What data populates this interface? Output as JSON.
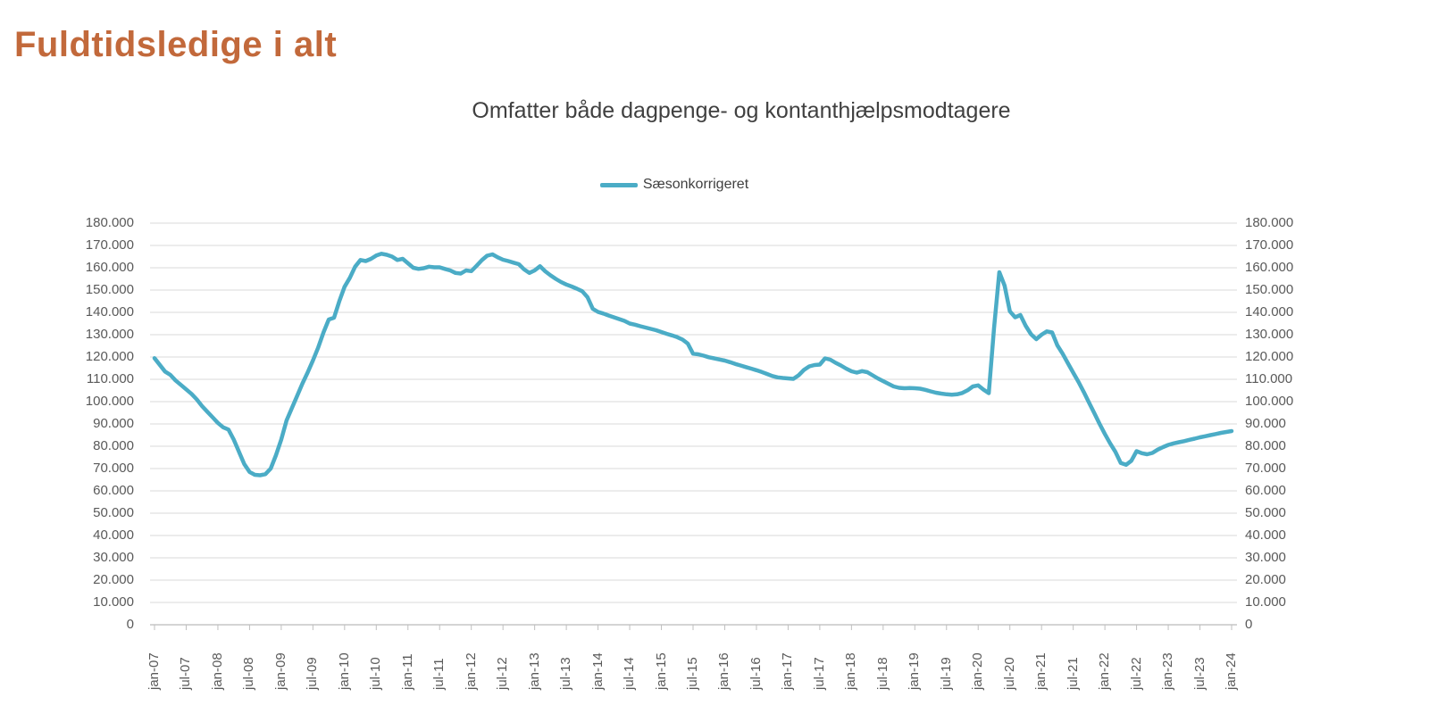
{
  "page": {
    "title": "Fuldtidsledige i alt"
  },
  "chart": {
    "subtitle": "Omfatter både dagpenge- og kontanthjælpsmodtagere",
    "legend": {
      "label": "Sæsonkorrigeret"
    }
  },
  "colors": {
    "title": "#C2693B",
    "line": "#4BACC6",
    "grid": "#D9D9D9",
    "axis_line": "#C6C6C6",
    "tick": "#BFBFBF",
    "axis_text": "#595959",
    "subtitle_text": "#404040"
  },
  "chart_data": {
    "type": "line",
    "title": "Omfatter både dagpenge- og kontanthjælpsmodtagere",
    "legend_position": "top-center",
    "grid": "horizontal",
    "series_name": "Sæsonkorrigeret",
    "x_start": "jan-07",
    "x_end": "jan-24",
    "x_interval": "monthly",
    "ylim": [
      0,
      180000
    ],
    "y_tick_step": 10000,
    "y_tick_labels": [
      "0",
      "10.000",
      "20.000",
      "30.000",
      "40.000",
      "50.000",
      "60.000",
      "70.000",
      "80.000",
      "90.000",
      "100.000",
      "110.000",
      "120.000",
      "130.000",
      "140.000",
      "150.000",
      "160.000",
      "170.000",
      "180.000"
    ],
    "x_tick_labels": [
      "jan-07",
      "jul-07",
      "jan-08",
      "jul-08",
      "jan-09",
      "jul-09",
      "jan-10",
      "jul-10",
      "jan-11",
      "jul-11",
      "jan-12",
      "jul-12",
      "jan-13",
      "jul-13",
      "jan-14",
      "jul-14",
      "jan-15",
      "jul-15",
      "jan-16",
      "jul-16",
      "jan-17",
      "jul-17",
      "jan-18",
      "jul-18",
      "jan-19",
      "jul-19",
      "jan-20",
      "jul-20",
      "jan-21",
      "jul-21",
      "jan-22",
      "jul-22",
      "jan-23",
      "jul-23",
      "jan-24"
    ],
    "values": [
      119500,
      116500,
      113500,
      112000,
      109500,
      107500,
      105500,
      103500,
      101000,
      98000,
      95500,
      93000,
      90500,
      88500,
      87500,
      83000,
      77500,
      72000,
      68500,
      67200,
      67000,
      67500,
      70000,
      76000,
      83000,
      91500,
      97000,
      102500,
      108000,
      113000,
      118500,
      124300,
      131000,
      136800,
      137600,
      145000,
      151500,
      155500,
      160500,
      163500,
      163000,
      164000,
      165500,
      166300,
      165800,
      165000,
      163500,
      164000,
      162000,
      160000,
      159500,
      159800,
      160500,
      160200,
      160200,
      159500,
      158800,
      157700,
      157400,
      158800,
      158500,
      160900,
      163400,
      165400,
      166000,
      164700,
      163600,
      163000,
      162300,
      161600,
      159300,
      157700,
      158800,
      160700,
      158400,
      156600,
      155000,
      153600,
      152500,
      151600,
      150600,
      149500,
      146800,
      141600,
      140200,
      139500,
      138600,
      137800,
      137000,
      136200,
      135000,
      134500,
      133800,
      133200,
      132600,
      132000,
      131200,
      130400,
      129700,
      128900,
      127800,
      126000,
      121500,
      121200,
      120600,
      119900,
      119400,
      118900,
      118400,
      117700,
      116900,
      116200,
      115500,
      114800,
      114100,
      113300,
      112400,
      111500,
      110900,
      110600,
      110400,
      110200,
      111800,
      114200,
      115800,
      116400,
      116600,
      119400,
      118800,
      117400,
      116200,
      114800,
      113600,
      113000,
      113700,
      113200,
      111800,
      110400,
      109200,
      108000,
      106800,
      106200,
      106000,
      106100,
      106000,
      105800,
      105300,
      104600,
      104000,
      103600,
      103300,
      103100,
      103300,
      103900,
      105100,
      106800,
      107300,
      105400,
      103800,
      133000,
      158000,
      152000,
      140500,
      137800,
      138800,
      134000,
      130200,
      128000,
      130000,
      131500,
      131000,
      125200,
      121500,
      117200,
      113000,
      108800,
      104300,
      99500,
      94800,
      90000,
      85500,
      81300,
      77500,
      72500,
      71700,
      73500,
      77800,
      76900,
      76400,
      77000,
      78500,
      79600,
      80600,
      81300,
      81800,
      82300,
      82900,
      83400,
      84000,
      84500,
      85000,
      85500,
      86000,
      86400,
      86800
    ]
  }
}
